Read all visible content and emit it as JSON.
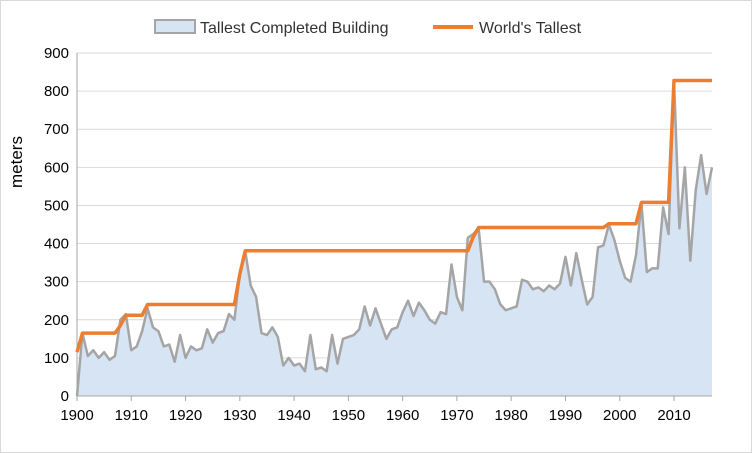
{
  "chart_data": {
    "type": "line",
    "title": "",
    "ylabel": "meters",
    "xlabel": "",
    "xlim": [
      1900,
      2017
    ],
    "ylim": [
      0,
      900
    ],
    "x_ticks": [
      "1900",
      "1910",
      "1920",
      "1930",
      "1940",
      "1950",
      "1960",
      "1970",
      "1980",
      "1990",
      "2000",
      "2010"
    ],
    "y_ticks": [
      "0",
      "100",
      "200",
      "300",
      "400",
      "500",
      "600",
      "700",
      "800",
      "900"
    ],
    "grid": true,
    "legend_position": "top",
    "series": [
      {
        "name": "Tallest Completed Building",
        "style": "area",
        "line_color": "#a5a5a5",
        "fill_color": "#d6e4f3",
        "x": [
          1900,
          1901,
          1902,
          1903,
          1904,
          1905,
          1906,
          1907,
          1908,
          1909,
          1910,
          1911,
          1912,
          1913,
          1914,
          1915,
          1916,
          1917,
          1918,
          1919,
          1920,
          1921,
          1922,
          1923,
          1924,
          1925,
          1926,
          1927,
          1928,
          1929,
          1930,
          1931,
          1932,
          1933,
          1934,
          1935,
          1936,
          1937,
          1938,
          1939,
          1940,
          1941,
          1942,
          1943,
          1944,
          1945,
          1946,
          1947,
          1948,
          1949,
          1950,
          1951,
          1952,
          1953,
          1954,
          1955,
          1956,
          1957,
          1958,
          1959,
          1960,
          1961,
          1962,
          1963,
          1964,
          1965,
          1966,
          1967,
          1968,
          1969,
          1970,
          1971,
          1972,
          1973,
          1974,
          1975,
          1976,
          1977,
          1978,
          1979,
          1980,
          1981,
          1982,
          1983,
          1984,
          1985,
          1986,
          1987,
          1988,
          1989,
          1990,
          1991,
          1992,
          1993,
          1994,
          1995,
          1996,
          1997,
          1998,
          1999,
          2000,
          2001,
          2002,
          2003,
          2004,
          2005,
          2006,
          2007,
          2008,
          2009,
          2010,
          2011,
          2012,
          2013,
          2014,
          2015,
          2016,
          2017
        ],
        "values": [
          0,
          165,
          105,
          120,
          100,
          115,
          95,
          105,
          200,
          215,
          120,
          130,
          170,
          230,
          180,
          170,
          130,
          135,
          90,
          160,
          100,
          130,
          120,
          125,
          175,
          140,
          165,
          170,
          215,
          200,
          320,
          380,
          290,
          260,
          165,
          160,
          180,
          155,
          80,
          100,
          80,
          85,
          65,
          160,
          70,
          75,
          65,
          160,
          85,
          150,
          155,
          160,
          175,
          235,
          185,
          230,
          190,
          150,
          175,
          180,
          220,
          250,
          210,
          245,
          225,
          200,
          190,
          220,
          215,
          345,
          260,
          225,
          415,
          425,
          440,
          300,
          300,
          280,
          240,
          225,
          230,
          235,
          305,
          300,
          280,
          285,
          275,
          290,
          280,
          295,
          365,
          290,
          375,
          305,
          240,
          260,
          390,
          395,
          450,
          410,
          355,
          310,
          300,
          370,
          505,
          325,
          335,
          335,
          495,
          425,
          828,
          440,
          600,
          355,
          540,
          632,
          530,
          600
        ]
      },
      {
        "name": "World's Tallest",
        "style": "line",
        "line_color": "#ed7d31",
        "x": [
          1900,
          1901,
          1902,
          1903,
          1904,
          1905,
          1906,
          1907,
          1908,
          1909,
          1910,
          1911,
          1912,
          1913,
          1914,
          1915,
          1916,
          1917,
          1918,
          1919,
          1920,
          1921,
          1922,
          1923,
          1924,
          1925,
          1926,
          1927,
          1928,
          1929,
          1930,
          1931,
          1932,
          1933,
          1934,
          1935,
          1936,
          1937,
          1938,
          1939,
          1940,
          1941,
          1942,
          1943,
          1944,
          1945,
          1946,
          1947,
          1948,
          1949,
          1950,
          1951,
          1952,
          1953,
          1954,
          1955,
          1956,
          1957,
          1958,
          1959,
          1960,
          1961,
          1962,
          1963,
          1964,
          1965,
          1966,
          1967,
          1968,
          1969,
          1970,
          1971,
          1972,
          1973,
          1974,
          1975,
          1976,
          1977,
          1978,
          1979,
          1980,
          1981,
          1982,
          1983,
          1984,
          1985,
          1986,
          1987,
          1988,
          1989,
          1990,
          1991,
          1992,
          1993,
          1994,
          1995,
          1996,
          1997,
          1998,
          1999,
          2000,
          2001,
          2002,
          2003,
          2004,
          2005,
          2006,
          2007,
          2008,
          2009,
          2010,
          2011,
          2012,
          2013,
          2014,
          2015,
          2016,
          2017
        ],
        "values": [
          115,
          165,
          165,
          165,
          165,
          165,
          165,
          165,
          185,
          212,
          212,
          212,
          212,
          240,
          240,
          240,
          240,
          240,
          240,
          240,
          240,
          240,
          240,
          240,
          240,
          240,
          240,
          240,
          240,
          240,
          320,
          381,
          381,
          381,
          381,
          381,
          381,
          381,
          381,
          381,
          381,
          381,
          381,
          381,
          381,
          381,
          381,
          381,
          381,
          381,
          381,
          381,
          381,
          381,
          381,
          381,
          381,
          381,
          381,
          381,
          381,
          381,
          381,
          381,
          381,
          381,
          381,
          381,
          381,
          381,
          381,
          381,
          381,
          417,
          442,
          442,
          442,
          442,
          442,
          442,
          442,
          442,
          442,
          442,
          442,
          442,
          442,
          442,
          442,
          442,
          442,
          442,
          442,
          442,
          442,
          442,
          442,
          442,
          452,
          452,
          452,
          452,
          452,
          452,
          508,
          508,
          508,
          508,
          508,
          508,
          828,
          828,
          828,
          828,
          828,
          828,
          828,
          828
        ]
      }
    ]
  }
}
